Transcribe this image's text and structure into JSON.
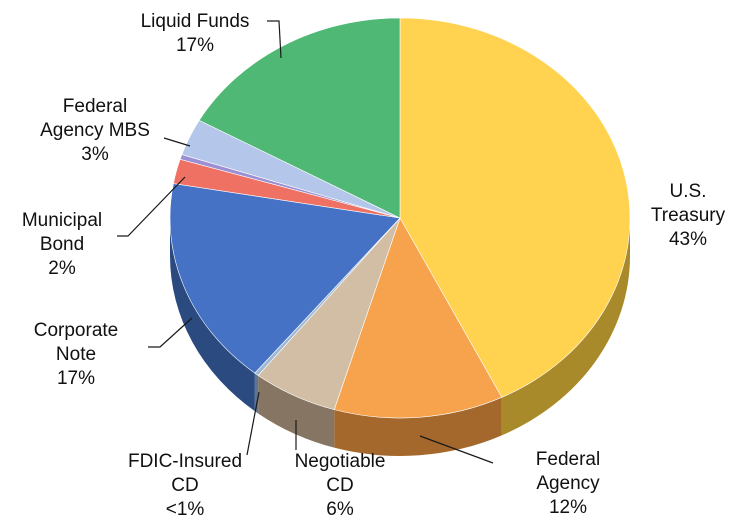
{
  "chart_data": {
    "type": "pie",
    "title": "",
    "slices": [
      {
        "label": "U.S. Treasury",
        "value": 43,
        "value_label": "43%",
        "color": "#FFD24F",
        "side": "#A88A2A"
      },
      {
        "label": "Federal Agency",
        "value": 12,
        "value_label": "12%",
        "color": "#F7A34E",
        "side": "#A5682C"
      },
      {
        "label": "Negotiable CD",
        "value": 6,
        "value_label": "6%",
        "color": "#D2BEA4",
        "side": "#857562"
      },
      {
        "label": "FDIC-Insured CD",
        "value": 0.3,
        "value_label": "<1%",
        "color": "#9DB8D6",
        "side": "#5E7490"
      },
      {
        "label": "Corporate Note",
        "value": 17,
        "value_label": "17%",
        "color": "#4572C4",
        "side": "#2A4A80"
      },
      {
        "label": "Municipal Bond",
        "value": 2,
        "value_label": "2%",
        "color": "#EE7163",
        "side": "#9C4339"
      },
      {
        "label": "",
        "value": 0.4,
        "value_label": "",
        "color": "#9C8FD4",
        "side": "#5F578C"
      },
      {
        "label": "Federal Agency MBS",
        "value": 3,
        "value_label": "3%",
        "color": "#B4C7EA",
        "side": "#75839C"
      },
      {
        "label": "Liquid Funds",
        "value": 17,
        "value_label": "17%",
        "color": "#4FB874",
        "side": "#2F7A4A"
      }
    ],
    "labels": [
      {
        "lines": [
          "U.S.",
          "Treasury",
          "43%"
        ]
      },
      {
        "lines": [
          "Federal",
          "Agency",
          "12%"
        ]
      },
      {
        "lines": [
          "Negotiable",
          "CD",
          "6%"
        ]
      },
      {
        "lines": [
          "FDIC-Insured",
          "CD",
          "<1%"
        ]
      },
      {
        "lines": [
          "Corporate",
          "Note",
          "17%"
        ]
      },
      {
        "lines": [
          "Municipal",
          "Bond",
          "2%"
        ]
      },
      {
        "lines": []
      },
      {
        "lines": [
          "Federal",
          "Agency MBS",
          "3%"
        ]
      },
      {
        "lines": [
          "Liquid Funds",
          "17%"
        ]
      }
    ],
    "legend": "none"
  }
}
